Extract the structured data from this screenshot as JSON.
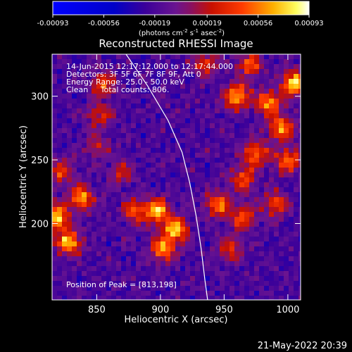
{
  "chart_data": {
    "type": "heatmap",
    "title": "Reconstructed RHESSI Image",
    "xlabel": "Heliocentric X (arcsec)",
    "ylabel": "Heliocentric Y (arcsec)",
    "xlim": [
      815,
      1010
    ],
    "ylim": [
      140,
      333
    ],
    "x_ticks": [
      850,
      900,
      950,
      1000
    ],
    "y_ticks": [
      200,
      250,
      300
    ],
    "colorbar": {
      "range": [
        -0.00093,
        0.00093
      ],
      "ticks": [
        -0.00093,
        -0.00056,
        -0.00019,
        0.00019,
        0.00056,
        0.00093
      ],
      "tick_labels": [
        "-0.00093",
        "-0.00056",
        "-0.00019",
        "0.00019",
        "0.00056",
        "0.00093"
      ],
      "unit_main": "(photons cm",
      "unit_exp1": "-2",
      "unit_mid": " s",
      "unit_exp2": "-1",
      "unit_end": " asec",
      "unit_exp3": "-2",
      "unit_close": ")"
    },
    "info_lines": [
      "14-Jun-2015 12:17:12.000 to 12:17:44.000",
      "Detectors: 3F 5F 6F 7F 8F 9F, Att 0",
      "Energy Range: 25.0 - 50.0 keV",
      "Clean     Total counts: 806."
    ],
    "peak_label": "Position of Peak = [813,198]",
    "limb_curve": [
      [
        873,
        333
      ],
      [
        890,
        308
      ],
      [
        906,
        281
      ],
      [
        917,
        256
      ],
      [
        923,
        232
      ],
      [
        928,
        206
      ],
      [
        932,
        180
      ],
      [
        935,
        155
      ],
      [
        937,
        140
      ]
    ],
    "hot_spots": [
      [
        818,
        205,
        1.0
      ],
      [
        828,
        185,
        0.9
      ],
      [
        838,
        220,
        0.8
      ],
      [
        822,
        240,
        0.5
      ],
      [
        855,
        310,
        0.6
      ],
      [
        852,
        285,
        0.5
      ],
      [
        850,
        260,
        0.4
      ],
      [
        898,
        210,
        0.9
      ],
      [
        912,
        195,
        0.9
      ],
      [
        902,
        180,
        0.8
      ],
      [
        880,
        210,
        0.6
      ],
      [
        960,
        300,
        0.9
      ],
      [
        985,
        295,
        0.8
      ],
      [
        1005,
        310,
        1.0
      ],
      [
        995,
        275,
        0.8
      ],
      [
        975,
        255,
        0.7
      ],
      [
        1000,
        250,
        0.7
      ],
      [
        965,
        235,
        0.6
      ],
      [
        945,
        215,
        0.7
      ],
      [
        965,
        205,
        0.6
      ],
      [
        955,
        180,
        0.5
      ],
      [
        990,
        215,
        0.6
      ],
      [
        870,
        240,
        0.4
      ],
      [
        935,
        325,
        0.5
      ],
      [
        970,
        325,
        0.6
      ]
    ]
  },
  "footer_timestamp": "21-May-2022 20:39"
}
